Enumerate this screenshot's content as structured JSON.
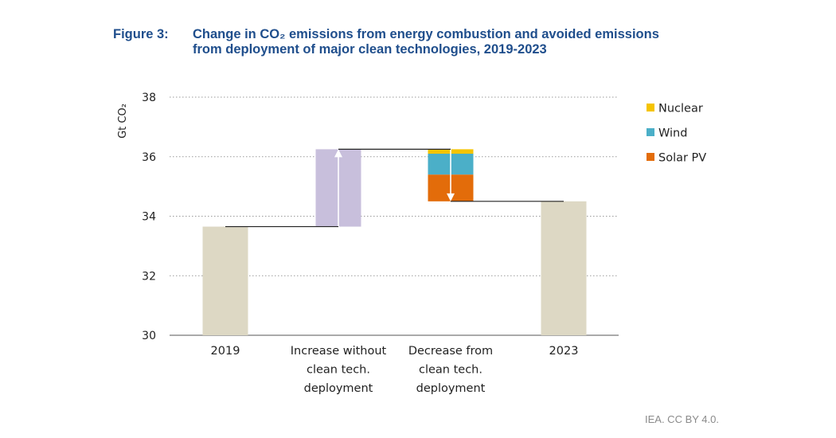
{
  "figure": {
    "label": "Figure 3:",
    "title_line1": "Change in CO₂ emissions from energy combustion and avoided emissions",
    "title_line2": "from deployment of major clean technologies, 2019-2023"
  },
  "credit": "IEA. CC BY 4.0.",
  "colors": {
    "base": "#ddd8c4",
    "increase": "#c8bfdc",
    "nuclear": "#f5c400",
    "wind": "#4bafc8",
    "solar": "#e36c0a",
    "grid": "#9a9a9a",
    "connector": "#222222"
  },
  "chart_data": {
    "type": "bar",
    "subtype": "waterfall",
    "title": "Change in CO₂ emissions from energy combustion and avoided emissions from deployment of major clean technologies, 2019-2023",
    "ylabel": "Gt CO₂",
    "ylim": [
      30,
      38
    ],
    "yticks": [
      30,
      32,
      34,
      36,
      38
    ],
    "grid": true,
    "legend_position": "right",
    "categories": [
      [
        "2019"
      ],
      [
        "Increase without",
        "clean tech.",
        "deployment"
      ],
      [
        "Decrease from",
        "clean tech.",
        "deployment"
      ],
      [
        "2023"
      ]
    ],
    "bars": [
      {
        "name": "2019",
        "kind": "total",
        "bottom": 30,
        "top": 33.65
      },
      {
        "name": "Increase without clean tech. deployment",
        "kind": "increase",
        "bottom": 33.65,
        "top": 36.25
      },
      {
        "name": "Decrease from clean tech. deployment",
        "kind": "decrease",
        "bottom": 34.5,
        "top": 36.25,
        "segments": [
          {
            "series": "Solar PV",
            "value": 0.9
          },
          {
            "series": "Wind",
            "value": 0.7
          },
          {
            "series": "Nuclear",
            "value": 0.15
          }
        ]
      },
      {
        "name": "2023",
        "kind": "total",
        "bottom": 30,
        "top": 34.5
      }
    ],
    "legend": [
      {
        "name": "Nuclear",
        "color_key": "nuclear"
      },
      {
        "name": "Wind",
        "color_key": "wind"
      },
      {
        "name": "Solar PV",
        "color_key": "solar"
      }
    ]
  }
}
